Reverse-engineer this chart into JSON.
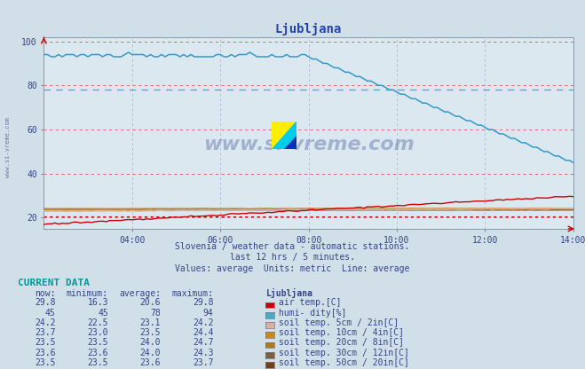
{
  "title": "Ljubljana",
  "background_color": "#d0dfe8",
  "plot_bg_color": "#dce8f0",
  "xlim": [
    0,
    144
  ],
  "ylim": [
    15,
    102
  ],
  "yticks": [
    20,
    40,
    60,
    80,
    100
  ],
  "xtick_labels": [
    "04:00",
    "06:00",
    "08:00",
    "10:00",
    "12:00",
    "14:00"
  ],
  "xtick_positions": [
    24,
    48,
    72,
    96,
    120,
    144
  ],
  "subtitle_lines": [
    "Slovenia / weather data - automatic stations.",
    "last 12 hrs / 5 minutes.",
    "Values: average  Units: metric  Line: average"
  ],
  "current_data_title": "CURRENT DATA",
  "table_headers": [
    "now:",
    "minimum:",
    "average:",
    "maximum:",
    "Ljubljana"
  ],
  "table_rows": [
    {
      "now": "29.8",
      "min": "16.3",
      "avg": "20.6",
      "max": "29.8",
      "color": "#cc0000",
      "label": "air temp.[C]"
    },
    {
      "now": "45",
      "min": "45",
      "avg": "78",
      "max": "94",
      "color": "#44aacc",
      "label": "humi- dity[%]"
    },
    {
      "now": "24.2",
      "min": "22.5",
      "avg": "23.1",
      "max": "24.2",
      "color": "#d4b0a8",
      "label": "soil temp. 5cm / 2in[C]"
    },
    {
      "now": "23.7",
      "min": "23.0",
      "avg": "23.5",
      "max": "24.4",
      "color": "#c8881c",
      "label": "soil temp. 10cm / 4in[C]"
    },
    {
      "now": "23.5",
      "min": "23.5",
      "avg": "24.0",
      "max": "24.7",
      "color": "#b07818",
      "label": "soil temp. 20cm / 8in[C]"
    },
    {
      "now": "23.6",
      "min": "23.6",
      "avg": "24.0",
      "max": "24.3",
      "color": "#7a6040",
      "label": "soil temp. 30cm / 12in[C]"
    },
    {
      "now": "23.5",
      "min": "23.5",
      "avg": "23.6",
      "max": "23.7",
      "color": "#704018",
      "label": "soil temp. 50cm / 20in[C]"
    }
  ],
  "avg_humidity": 78,
  "avg_air_temp": 20.6,
  "line_colors": {
    "humidity": "#3399cc",
    "air_temp": "#cc0000",
    "soil_5cm": "#d4b0a8",
    "soil_10cm": "#c8881c",
    "soil_20cm": "#b07818",
    "soil_30cm": "#7a6040",
    "soil_50cm": "#704018"
  },
  "watermark_text": "www.si-vreme.com",
  "watermark_color": "#1a3388",
  "watermark_alpha": 0.3,
  "left_watermark_text": "www.si-vreme.com"
}
